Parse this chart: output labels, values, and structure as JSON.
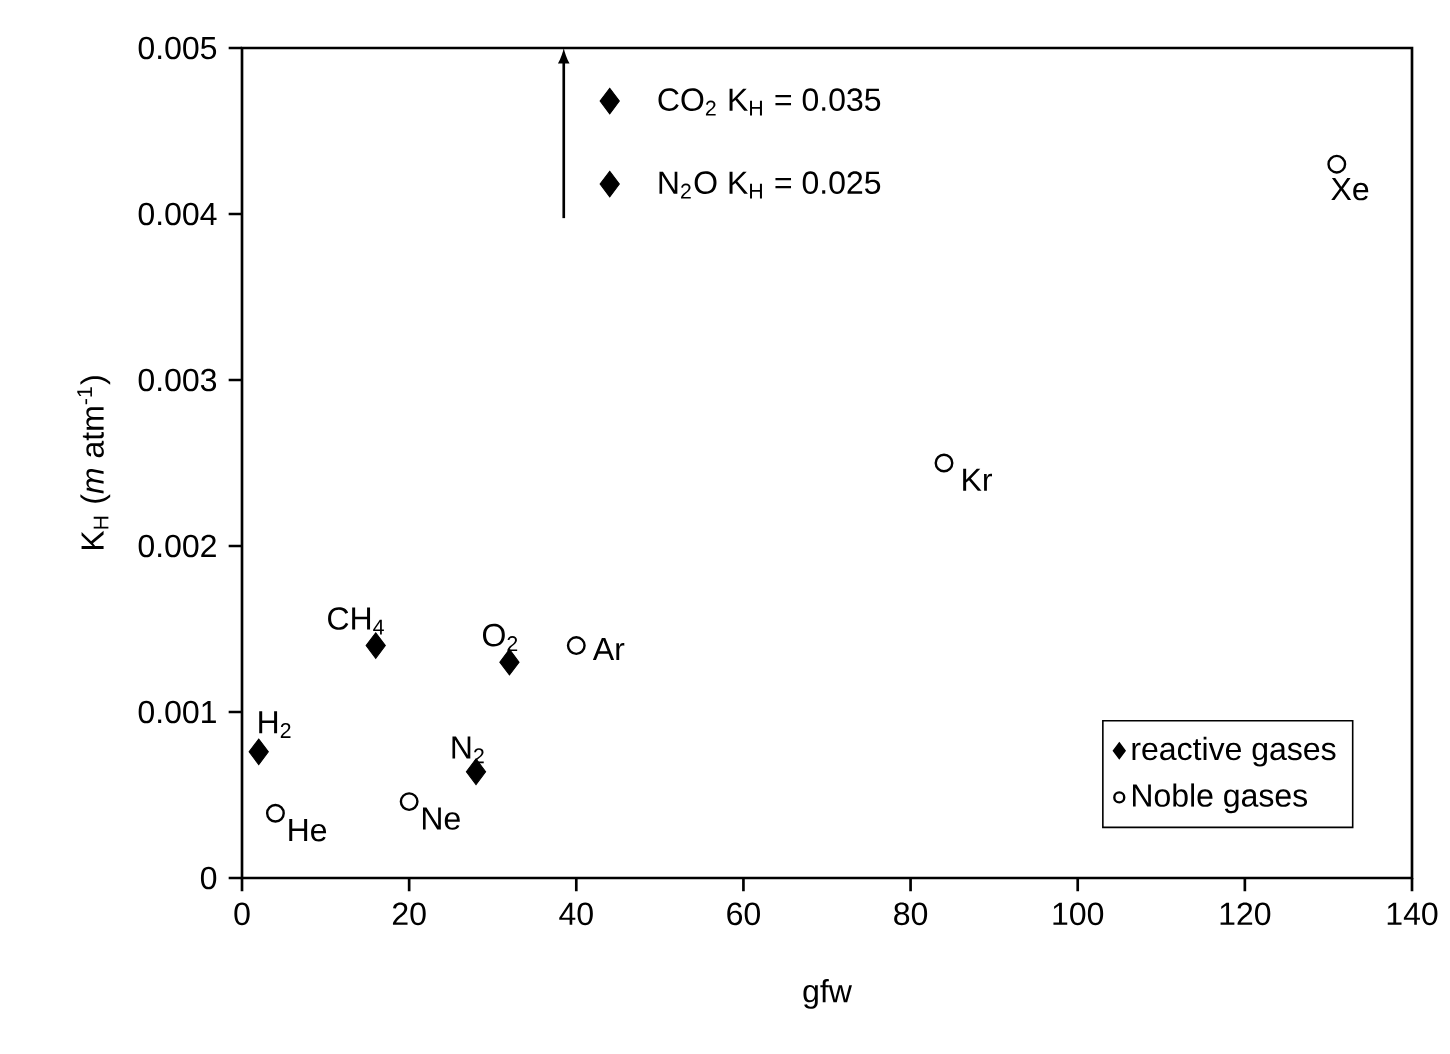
{
  "chart_data": {
    "type": "scatter",
    "xlabel": "gfw",
    "ylabel": "K$_{H}$  (*m* atm$^{-1}$)",
    "xlim": [
      0,
      140
    ],
    "xticks": [
      0,
      20,
      40,
      60,
      80,
      100,
      120,
      140
    ],
    "ylim": [
      0,
      0.005
    ],
    "yticks": [
      0,
      0.001,
      0.002,
      0.003,
      0.004,
      0.005
    ],
    "grid": false,
    "legend": "bottom right",
    "series": [
      {
        "name": "reactive gases",
        "color": "#000000",
        "marker": "diamond",
        "x": [
          2,
          16,
          32,
          28
        ],
        "values": [
          0.00076,
          0.0014,
          0.0013,
          0.00064
        ]
      },
      {
        "name": "Noble gases",
        "color": "#000000",
        "marker": "circle",
        "x": [
          4,
          20,
          40,
          84,
          131
        ],
        "values": [
          0.00039,
          0.00046,
          0.0014,
          0.0025,
          0.0043
        ]
      },
      {
        "color": "#000000",
        "marker": "diamond",
        "x": [
          44,
          44
        ],
        "values": [
          0.00468,
          0.00418
        ]
      }
    ],
    "annotations": [
      "CO$_{2}$  K$_{H}$ = 0.035",
      "N$_{2}$O  K$_{H}$ = 0.025",
      {
        "text": "H$_{2}$",
        "x": 2,
        "y": 0.00076
      },
      {
        "text": "CH$_{4}$",
        "x": 16,
        "y": 0.0014
      },
      {
        "text": "O$_{2}$",
        "x": 32,
        "y": 0.0013
      },
      {
        "text": "N$_{2}$",
        "x": 28,
        "y": 0.00064
      },
      {
        "text": "He",
        "x": 4,
        "y": 0.00039
      },
      {
        "text": "Ne",
        "x": 20,
        "y": 0.00046
      },
      {
        "text": "Ar",
        "x": 40,
        "y": 0.0014
      },
      {
        "text": "Kr",
        "x": 84,
        "y": 0.0025
      },
      {
        "text": "Xe",
        "x": 131,
        "y": 0.0043
      }
    ]
  }
}
